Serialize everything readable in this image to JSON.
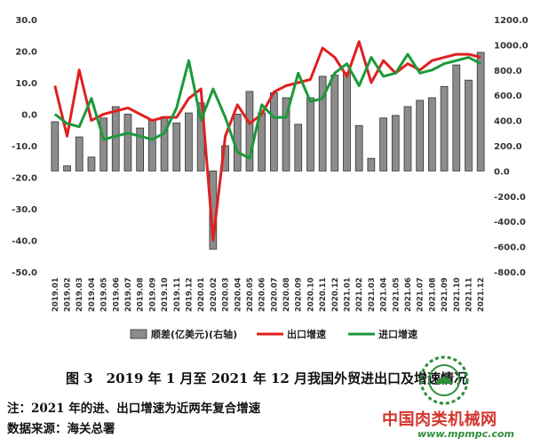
{
  "chart_data": {
    "type": "bar+line",
    "categories": [
      "2019.01",
      "2019.02",
      "2019.03",
      "2019.04",
      "2019.05",
      "2019.06",
      "2019.07",
      "2019.08",
      "2019.09",
      "2019.10",
      "2019.11",
      "2019.12",
      "2020.01",
      "2020.02",
      "2020.03",
      "2020.04",
      "2020.05",
      "2020.06",
      "2020.07",
      "2020.08",
      "2020.09",
      "2020.10",
      "2020.11",
      "2020.12",
      "2021.01",
      "2021.02",
      "2021.03",
      "2021.04",
      "2021.05",
      "2021.06",
      "2021.07",
      "2021.08",
      "2021.09",
      "2021.10",
      "2021.11",
      "2021.12"
    ],
    "bars": {
      "name": "顺差(亿美元)(右轴)",
      "axis": "right",
      "color": "#8c8c8c",
      "values": [
        390,
        40,
        270,
        110,
        420,
        510,
        450,
        340,
        400,
        430,
        380,
        460,
        540,
        -620,
        200,
        450,
        630,
        460,
        620,
        580,
        370,
        580,
        750,
        760,
        780,
        360,
        100,
        420,
        440,
        510,
        560,
        580,
        670,
        840,
        720,
        940
      ]
    },
    "series": [
      {
        "name": "出口增速",
        "axis": "left",
        "color": "#e02020",
        "values": [
          9,
          -7,
          14,
          -2,
          0,
          1,
          2,
          0,
          -2,
          -1,
          -1,
          5,
          8,
          -40,
          -7,
          3,
          -3,
          0,
          7,
          9,
          10,
          11,
          21,
          18,
          12,
          23,
          10,
          17,
          13,
          16,
          14,
          17,
          18,
          19,
          19,
          18
        ]
      },
      {
        "name": "进口增速",
        "axis": "left",
        "color": "#1a9a3a",
        "values": [
          0,
          -3,
          -4,
          5,
          -8,
          -7,
          -6,
          -7,
          -8,
          -6,
          2,
          17,
          -2,
          8,
          -1,
          -12,
          -14,
          3,
          -1,
          -1,
          13,
          4,
          5,
          13,
          16,
          9,
          18,
          12,
          13,
          19,
          13,
          14,
          16,
          17,
          18,
          16
        ]
      }
    ],
    "left_axis": {
      "min": -50,
      "max": 30,
      "ticks": [
        "30.0",
        "20.0",
        "10.0",
        "0.0",
        "-10.0",
        "-20.0",
        "-30.0",
        "-40.0",
        "-50.0"
      ]
    },
    "right_axis": {
      "min": -800,
      "max": 1200,
      "ticks": [
        "1200.0",
        "1000.0",
        "800.0",
        "600.0",
        "400.0",
        "200.0",
        "0.0",
        "-200.0",
        "-400.0",
        "-600.0",
        "-800.0"
      ]
    },
    "legend": [
      "顺差(亿美元)(右轴)",
      "出口增速",
      "进口增速"
    ],
    "legend_position": "bottom",
    "grid": false
  },
  "caption": "图 3　2019 年 1 月至 2021 年 12 月我国外贸进出口及增速情况",
  "notes": {
    "note1": "注：2021 年的进、出口增速为近两年复合增速",
    "note2": "数据来源：海关总署"
  },
  "watermark": {
    "text": "中国肉类机械网",
    "url": "www.mpmpc.com",
    "logo_color": "#2f8e3c"
  }
}
